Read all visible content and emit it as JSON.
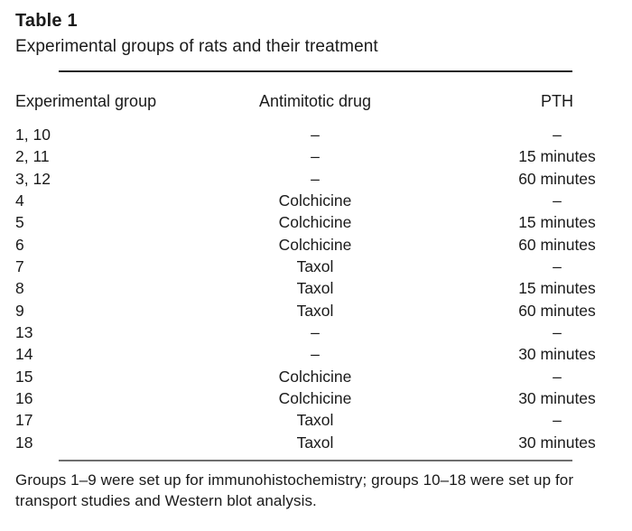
{
  "document": {
    "table_label": "Table 1",
    "table_caption": "Experimental groups of rats and their treatment"
  },
  "table": {
    "columns": [
      "Experimental group",
      "Antimitotic drug",
      "PTH"
    ],
    "rows": [
      [
        "1, 10",
        "–",
        "–"
      ],
      [
        "2, 11",
        "–",
        "15 minutes"
      ],
      [
        "3, 12",
        "–",
        "60 minutes"
      ],
      [
        "4",
        "Colchicine",
        "–"
      ],
      [
        "5",
        "Colchicine",
        "15 minutes"
      ],
      [
        "6",
        "Colchicine",
        "60 minutes"
      ],
      [
        "7",
        "Taxol",
        "–"
      ],
      [
        "8",
        "Taxol",
        "15 minutes"
      ],
      [
        "9",
        "Taxol",
        "60 minutes"
      ],
      [
        "13",
        "–",
        "–"
      ],
      [
        "14",
        "–",
        "30 minutes"
      ],
      [
        "15",
        "Colchicine",
        "–"
      ],
      [
        "16",
        "Colchicine",
        "30 minutes"
      ],
      [
        "17",
        "Taxol",
        "–"
      ],
      [
        "18",
        "Taxol",
        "30 minutes"
      ]
    ]
  },
  "footnote": {
    "lines": [
      "Groups 1–9 were set up for immunohistochemistry; groups 10–18 were set up for",
      "transport studies and Western blot analysis."
    ]
  },
  "colors": {
    "background": "#ffffff",
    "text": "#1a1a1a",
    "rule_top": "#242424",
    "rule_bottom": "#6e6e6e"
  }
}
